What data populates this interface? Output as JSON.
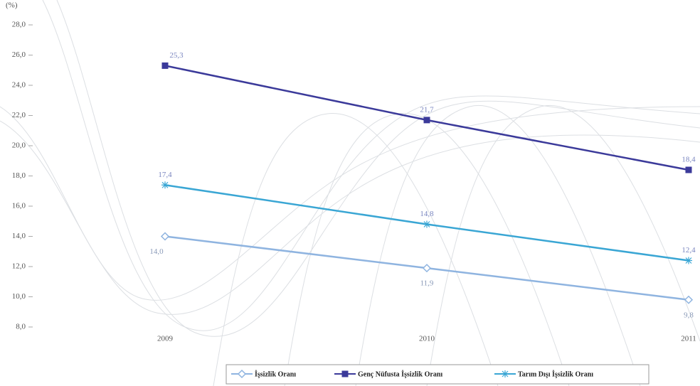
{
  "chart_data": {
    "type": "line",
    "y_unit": "(%)",
    "categories": [
      "2009",
      "2010",
      "2011"
    ],
    "series": [
      {
        "name": "İşsizlik Oranı",
        "color": "#8fb4e0",
        "marker": "diamond",
        "values": [
          14.0,
          11.9,
          9.8
        ],
        "value_labels": [
          "14,0",
          "11,9",
          "9,8"
        ]
      },
      {
        "name": "Genç Nüfusta İşsizlik Oranı",
        "color": "#3b3a9a",
        "marker": "square",
        "values": [
          25.3,
          21.7,
          18.4
        ],
        "value_labels": [
          "25,3",
          "21,7",
          "18,4"
        ]
      },
      {
        "name": "Tarım Dışı İşsizlik Oranı",
        "color": "#3aa6d4",
        "marker": "star",
        "values": [
          17.4,
          14.8,
          12.4
        ],
        "value_labels": [
          "17,4",
          "14,8",
          "12,4"
        ]
      }
    ],
    "ylim": [
      8,
      28
    ],
    "yticks": [
      {
        "value": 8,
        "label": "8,0"
      },
      {
        "value": 10,
        "label": "10,0"
      },
      {
        "value": 12,
        "label": "12,0"
      },
      {
        "value": 14,
        "label": "14,0"
      },
      {
        "value": 16,
        "label": "16,0"
      },
      {
        "value": 18,
        "label": "18,0"
      },
      {
        "value": 20,
        "label": "20,0"
      },
      {
        "value": 22,
        "label": "22,0"
      },
      {
        "value": 24,
        "label": "24,0"
      },
      {
        "value": 26,
        "label": "26,0"
      },
      {
        "value": 28,
        "label": "28,0"
      }
    ],
    "legend": "bottom"
  }
}
